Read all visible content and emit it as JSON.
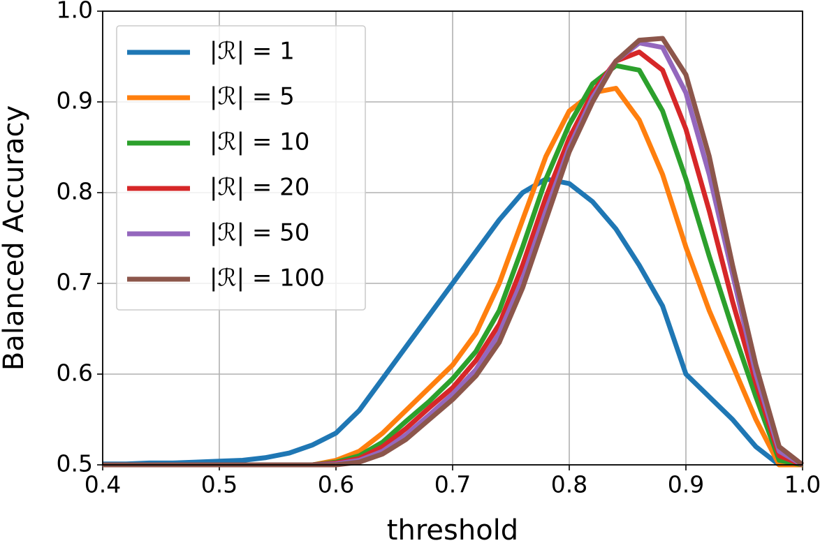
{
  "chart_data": {
    "type": "line",
    "xlabel": "threshold",
    "ylabel": "Balanced Accuracy",
    "x": [
      0.4,
      0.42,
      0.44,
      0.46,
      0.48,
      0.5,
      0.52,
      0.54,
      0.56,
      0.58,
      0.6,
      0.62,
      0.64,
      0.66,
      0.68,
      0.7,
      0.72,
      0.74,
      0.76,
      0.78,
      0.8,
      0.82,
      0.84,
      0.86,
      0.88,
      0.9,
      0.92,
      0.94,
      0.96,
      0.98,
      1.0
    ],
    "series": [
      {
        "name": "|ℛ| = 1",
        "color": "#1f77b4",
        "values": [
          0.501,
          0.501,
          0.502,
          0.502,
          0.503,
          0.504,
          0.505,
          0.508,
          0.513,
          0.522,
          0.535,
          0.56,
          0.595,
          0.63,
          0.665,
          0.7,
          0.735,
          0.77,
          0.8,
          0.815,
          0.81,
          0.79,
          0.76,
          0.72,
          0.675,
          0.6,
          0.575,
          0.55,
          0.52,
          0.5,
          0.5
        ]
      },
      {
        "name": "|ℛ| = 5",
        "color": "#ff7f0e",
        "values": [
          0.5,
          0.5,
          0.5,
          0.5,
          0.5,
          0.5,
          0.5,
          0.5,
          0.5,
          0.5,
          0.505,
          0.515,
          0.535,
          0.56,
          0.585,
          0.61,
          0.645,
          0.7,
          0.77,
          0.84,
          0.89,
          0.91,
          0.915,
          0.88,
          0.82,
          0.74,
          0.67,
          0.61,
          0.55,
          0.5,
          0.5
        ]
      },
      {
        "name": "|ℛ| = 10",
        "color": "#2ca02c",
        "values": [
          0.5,
          0.5,
          0.5,
          0.5,
          0.5,
          0.5,
          0.5,
          0.5,
          0.5,
          0.5,
          0.503,
          0.51,
          0.525,
          0.548,
          0.57,
          0.595,
          0.625,
          0.67,
          0.74,
          0.815,
          0.875,
          0.92,
          0.94,
          0.935,
          0.89,
          0.815,
          0.73,
          0.65,
          0.575,
          0.505,
          0.5
        ]
      },
      {
        "name": "|ℛ| = 20",
        "color": "#d62728",
        "values": [
          0.5,
          0.5,
          0.5,
          0.5,
          0.5,
          0.5,
          0.5,
          0.5,
          0.5,
          0.5,
          0.502,
          0.507,
          0.52,
          0.54,
          0.563,
          0.585,
          0.615,
          0.655,
          0.72,
          0.795,
          0.86,
          0.91,
          0.945,
          0.955,
          0.935,
          0.87,
          0.78,
          0.68,
          0.59,
          0.51,
          0.5
        ]
      },
      {
        "name": "|ℛ| = 50",
        "color": "#9467bd",
        "values": [
          0.5,
          0.5,
          0.5,
          0.5,
          0.5,
          0.5,
          0.5,
          0.5,
          0.5,
          0.5,
          0.501,
          0.505,
          0.515,
          0.533,
          0.555,
          0.578,
          0.605,
          0.645,
          0.705,
          0.78,
          0.85,
          0.905,
          0.945,
          0.965,
          0.96,
          0.91,
          0.82,
          0.71,
          0.6,
          0.515,
          0.5
        ]
      },
      {
        "name": "|ℛ| = 100",
        "color": "#8c564b",
        "values": [
          0.5,
          0.5,
          0.5,
          0.5,
          0.5,
          0.5,
          0.5,
          0.5,
          0.5,
          0.5,
          0.5,
          0.503,
          0.512,
          0.528,
          0.55,
          0.572,
          0.598,
          0.635,
          0.695,
          0.77,
          0.845,
          0.9,
          0.945,
          0.968,
          0.97,
          0.93,
          0.84,
          0.72,
          0.61,
          0.52,
          0.5
        ]
      }
    ],
    "xlim": [
      0.4,
      1.0
    ],
    "ylim": [
      0.5,
      1.0
    ],
    "xticks": [
      0.4,
      0.5,
      0.6,
      0.7,
      0.8,
      0.9,
      {
        "value": 1,
        "label": "1.0"
      }
    ],
    "yticks": [
      0.5,
      0.6,
      0.7,
      0.8,
      0.9,
      {
        "value": 1,
        "label": "1.0"
      }
    ],
    "grid": true,
    "legend": "upper left"
  }
}
